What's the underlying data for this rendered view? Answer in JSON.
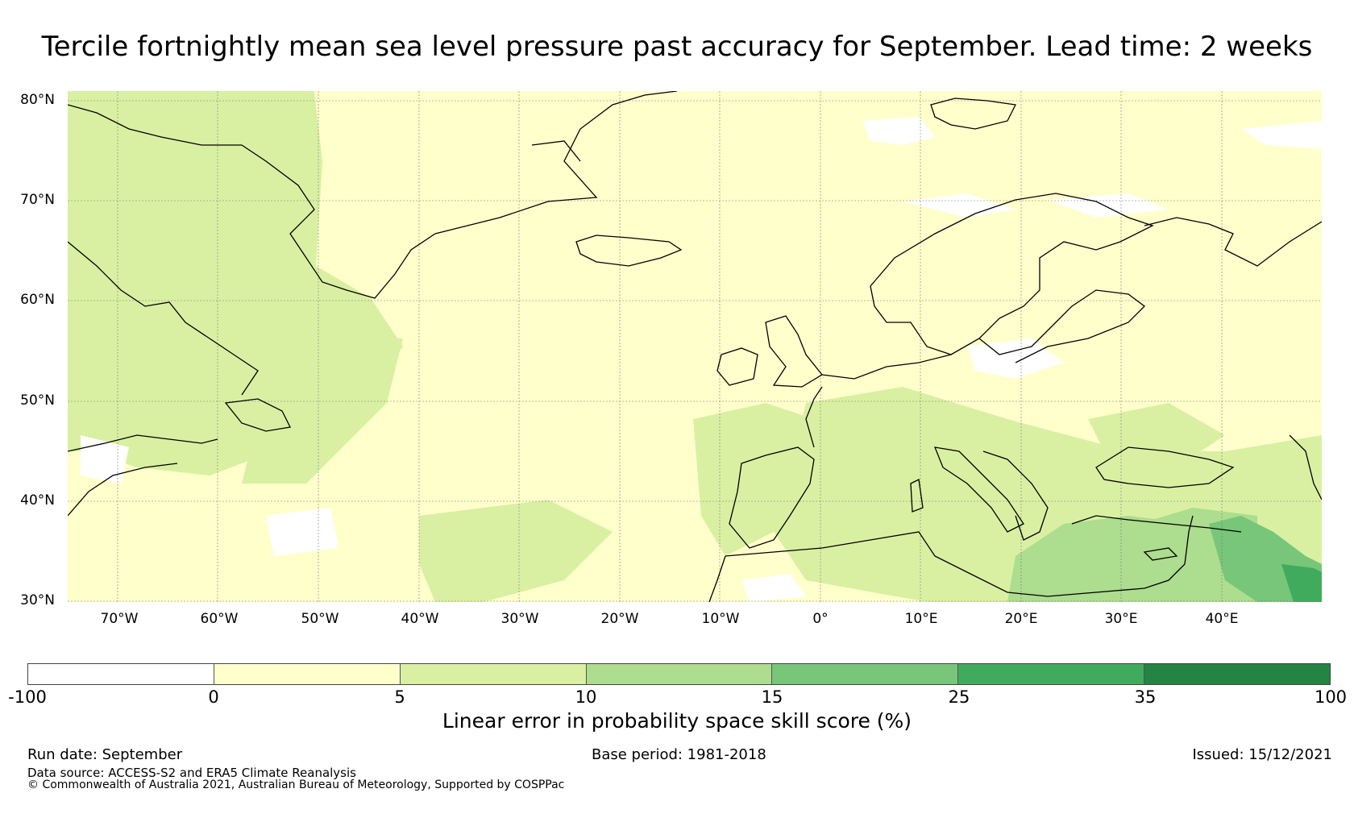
{
  "title": "Tercile fortnightly mean sea level pressure past accuracy for September. Lead time: 2 weeks",
  "map": {
    "latitude_labels": [
      "80°N",
      "70°N",
      "60°N",
      "50°N",
      "40°N",
      "30°N"
    ],
    "longitude_labels": [
      "70°W",
      "60°W",
      "50°W",
      "40°W",
      "30°W",
      "20°W",
      "10°W",
      "0°",
      "10°E",
      "20°E",
      "30°E",
      "40°E"
    ],
    "lon_range": [
      -75,
      50
    ],
    "lat_range": [
      30,
      81
    ],
    "ocean_fill": "#ffffcc",
    "regions": [
      {
        "name": "labrador-baffin",
        "category": "5-10"
      },
      {
        "name": "north-atlantic-west",
        "category": "5-10"
      },
      {
        "name": "mid-atlantic",
        "category": "5-10"
      },
      {
        "name": "iberia-north-africa",
        "category": "5-10"
      },
      {
        "name": "eastern-mediterranean",
        "category": "10-15"
      },
      {
        "name": "middle-east",
        "category": "15-25"
      },
      {
        "name": "arctic-gaps",
        "category": "-100-0"
      }
    ]
  },
  "colorbar": {
    "label": "Linear error in probability space skill score (%)",
    "ticks": [
      "-100",
      "0",
      "5",
      "10",
      "15",
      "25",
      "35",
      "100"
    ],
    "segments": [
      {
        "range": "-100 to 0",
        "color": "#ffffff"
      },
      {
        "range": "0 to 5",
        "color": "#ffffcc"
      },
      {
        "range": "5 to 10",
        "color": "#d9f0a3"
      },
      {
        "range": "10 to 15",
        "color": "#addd8e"
      },
      {
        "range": "15 to 25",
        "color": "#78c679"
      },
      {
        "range": "25 to 35",
        "color": "#41ab5d"
      },
      {
        "range": "35 to 100",
        "color": "#238443"
      }
    ]
  },
  "footer": {
    "run_date": "Run date: September",
    "base_period": "Base period: 1981-2018",
    "issued": "Issued: 15/12/2021",
    "data_source": "Data source: ACCESS-S2 and ERA5 Climate Reanalysis",
    "copyright": "© Commonwealth of Australia 2021, Australian Bureau of Meteorology, Supported by COSPPac"
  }
}
